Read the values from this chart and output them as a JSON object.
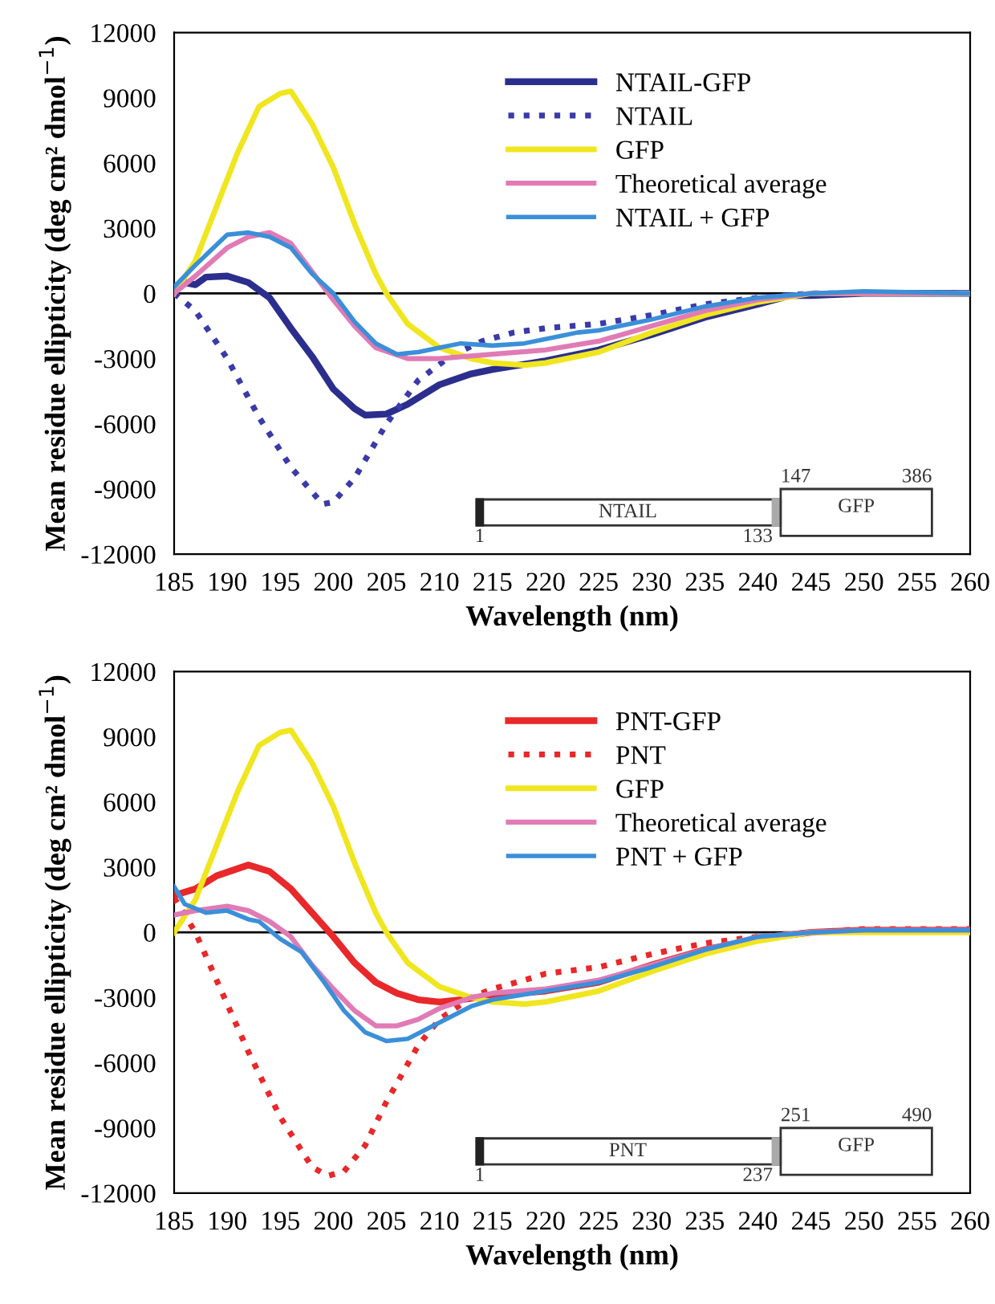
{
  "chart_data": [
    {
      "type": "line",
      "xlabel": "Wavelength (nm)",
      "ylabel": "Mean residue ellipticity (deg cm² dmol$^{−1}$)",
      "xlim": [
        185,
        260
      ],
      "ylim": [
        -12000,
        12000
      ],
      "xticks": [
        185,
        190,
        195,
        200,
        205,
        210,
        215,
        220,
        225,
        230,
        235,
        240,
        245,
        250,
        255,
        260
      ],
      "yticks": [
        -12000,
        -9000,
        -6000,
        -3000,
        0,
        3000,
        6000,
        9000,
        12000
      ],
      "grid": false,
      "legend": "top",
      "marker": "none",
      "ref_lines": [
        {
          "axis": "y",
          "value": 0,
          "color": "#000000"
        }
      ],
      "annotations": [
        "NTAIL",
        "GFP",
        "1",
        "133",
        "147",
        "386"
      ],
      "series": [
        {
          "name": "NTAIL-GFP",
          "color": "#2b2e8c",
          "line_style": "solid",
          "x": [
            185,
            186,
            187,
            188,
            190,
            192,
            194,
            196,
            198,
            200,
            202,
            203,
            205,
            207,
            210,
            213,
            215,
            220,
            225,
            230,
            235,
            240,
            243,
            245,
            250,
            255,
            260
          ],
          "values": [
            300,
            500,
            400,
            750,
            800,
            500,
            -200,
            -1600,
            -2900,
            -4400,
            -5300,
            -5600,
            -5550,
            -5100,
            -4200,
            -3700,
            -3500,
            -3100,
            -2600,
            -1900,
            -1100,
            -500,
            -100,
            -100,
            0,
            0,
            0
          ]
        },
        {
          "name": "NTAIL",
          "color": "#3a3aa8",
          "line_style": "dotted",
          "x": [
            185,
            187,
            190,
            193,
            196,
            199,
            200,
            202,
            205,
            208,
            211,
            214,
            217,
            220,
            225,
            230,
            235,
            240,
            245,
            250,
            260
          ],
          "values": [
            0,
            -800,
            -3000,
            -5700,
            -8000,
            -9700,
            -9600,
            -8500,
            -6000,
            -4000,
            -2900,
            -2200,
            -1800,
            -1600,
            -1400,
            -1000,
            -500,
            -200,
            0,
            0,
            0
          ]
        },
        {
          "name": "GFP",
          "color": "#f0e620",
          "line_style": "solid",
          "x": [
            185,
            187,
            189,
            191,
            193,
            195,
            196,
            198,
            200,
            202,
            204,
            205,
            207,
            210,
            213,
            215,
            218,
            220,
            225,
            230,
            235,
            240,
            245,
            250,
            260
          ],
          "values": [
            0,
            1500,
            4000,
            6500,
            8600,
            9200,
            9300,
            7800,
            5800,
            3200,
            900,
            0,
            -1400,
            -2500,
            -3000,
            -3200,
            -3300,
            -3200,
            -2700,
            -1800,
            -1000,
            -400,
            0,
            0,
            0
          ]
        },
        {
          "name": "Theoretical average",
          "color": "#e07bb5",
          "line_style": "solid",
          "x": [
            185,
            187,
            190,
            192,
            194,
            196,
            198,
            200,
            202,
            204,
            207,
            210,
            215,
            220,
            225,
            230,
            235,
            240,
            245,
            250,
            260
          ],
          "values": [
            0,
            800,
            2100,
            2600,
            2800,
            2300,
            1000,
            -300,
            -1500,
            -2500,
            -3000,
            -3000,
            -2800,
            -2600,
            -2200,
            -1500,
            -800,
            -300,
            0,
            0,
            0
          ]
        },
        {
          "name": "NTAIL + GFP",
          "color": "#3b8fd9",
          "line_style": "solid",
          "x": [
            185,
            187,
            190,
            192,
            194,
            196,
            198,
            200,
            202,
            204,
            206,
            208,
            210,
            212,
            215,
            218,
            220,
            223,
            225,
            230,
            235,
            240,
            245,
            250,
            260
          ],
          "values": [
            300,
            1300,
            2700,
            2800,
            2600,
            2100,
            900,
            0,
            -1300,
            -2300,
            -2800,
            -2700,
            -2500,
            -2300,
            -2400,
            -2300,
            -2100,
            -1800,
            -1700,
            -1200,
            -600,
            -200,
            0,
            100,
            0
          ]
        }
      ]
    },
    {
      "type": "line",
      "xlabel": "Wavelength (nm)",
      "ylabel": "Mean residue ellipticity (deg cm² dmol$^{−1}$)",
      "xlim": [
        185,
        260
      ],
      "ylim": [
        -12000,
        12000
      ],
      "xticks": [
        185,
        190,
        195,
        200,
        205,
        210,
        215,
        220,
        225,
        230,
        235,
        240,
        245,
        250,
        255,
        260
      ],
      "yticks": [
        -12000,
        -9000,
        -6000,
        -3000,
        0,
        3000,
        6000,
        9000,
        12000
      ],
      "grid": false,
      "legend": "top",
      "marker": "none",
      "ref_lines": [
        {
          "axis": "y",
          "value": 0,
          "color": "#000000"
        }
      ],
      "annotations": [
        "PNT",
        "GFP",
        "1",
        "237",
        "251",
        "490"
      ],
      "series": [
        {
          "name": "PNT-GFP",
          "color": "#e8282a",
          "line_style": "solid",
          "x": [
            185,
            187,
            189,
            192,
            194,
            196,
            198,
            200,
            202,
            204,
            206,
            208,
            210,
            212,
            215,
            220,
            225,
            230,
            235,
            240,
            245,
            250,
            260
          ],
          "values": [
            1700,
            2000,
            2600,
            3100,
            2800,
            2000,
            900,
            -200,
            -1400,
            -2300,
            -2800,
            -3100,
            -3200,
            -3100,
            -2900,
            -2700,
            -2300,
            -1500,
            -800,
            -300,
            0,
            100,
            100
          ]
        },
        {
          "name": "PNT",
          "color": "#e8282a",
          "line_style": "dotted",
          "x": [
            185,
            187,
            189,
            192,
            195,
            198,
            199.5,
            201,
            203,
            205,
            208,
            210,
            213,
            215,
            218,
            220,
            225,
            230,
            235,
            240,
            245,
            250,
            260
          ],
          "values": [
            1600,
            0,
            -2200,
            -5500,
            -8500,
            -10800,
            -11200,
            -11000,
            -9800,
            -7800,
            -5200,
            -4000,
            -3000,
            -2600,
            -2200,
            -1900,
            -1600,
            -1000,
            -500,
            -200,
            0,
            150,
            150
          ]
        },
        {
          "name": "GFP",
          "color": "#f0e620",
          "line_style": "solid",
          "x": [
            185,
            187,
            189,
            191,
            193,
            195,
            196,
            198,
            200,
            202,
            204,
            205,
            207,
            210,
            213,
            215,
            218,
            220,
            225,
            230,
            235,
            240,
            245,
            250,
            260
          ],
          "values": [
            0,
            1500,
            4000,
            6500,
            8600,
            9200,
            9300,
            7800,
            5800,
            3200,
            900,
            0,
            -1400,
            -2500,
            -3000,
            -3200,
            -3300,
            -3200,
            -2700,
            -1800,
            -1000,
            -400,
            0,
            0,
            0
          ]
        },
        {
          "name": "Theoretical average",
          "color": "#e07bb5",
          "line_style": "solid",
          "x": [
            185,
            187,
            190,
            192,
            194,
            196,
            198,
            200,
            202,
            204,
            206,
            208,
            210,
            213,
            215,
            220,
            225,
            230,
            235,
            240,
            245,
            250,
            260
          ],
          "values": [
            800,
            1000,
            1200,
            1000,
            500,
            -200,
            -1500,
            -2600,
            -3600,
            -4300,
            -4300,
            -4000,
            -3500,
            -3000,
            -2800,
            -2600,
            -2200,
            -1500,
            -800,
            -200,
            0,
            100,
            100
          ]
        },
        {
          "name": "PNT + GFP",
          "color": "#3b8fd9",
          "line_style": "solid",
          "x": [
            185,
            186,
            188,
            190,
            192,
            193,
            195,
            197,
            199,
            201,
            203,
            205,
            207,
            209,
            211,
            213,
            215,
            220,
            225,
            230,
            235,
            240,
            245,
            250,
            260
          ],
          "values": [
            2100,
            1300,
            900,
            1000,
            600,
            500,
            -300,
            -900,
            -2200,
            -3600,
            -4600,
            -5000,
            -4900,
            -4400,
            -3900,
            -3400,
            -3100,
            -2700,
            -2300,
            -1600,
            -800,
            -200,
            0,
            100,
            100
          ]
        }
      ]
    }
  ]
}
